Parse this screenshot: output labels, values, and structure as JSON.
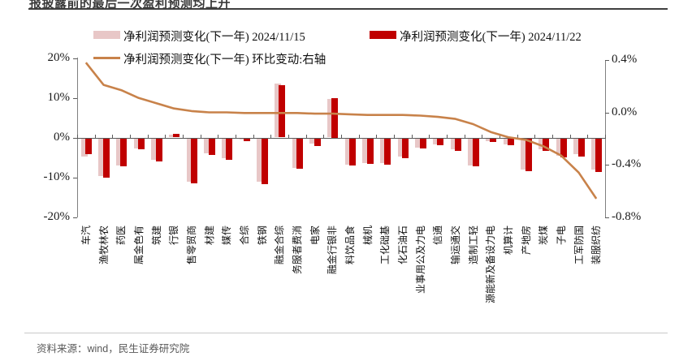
{
  "title": "报披露前的最后一次盈利预测均上升",
  "footer": "资料来源：wind，民生证券研究院",
  "colors": {
    "bar_nov15": "#e8c7c7",
    "bar_nov22": "#c00000",
    "line": "#c8824a",
    "axis": "#808080",
    "zero_line": "#595959"
  },
  "chart_data": {
    "type": "bar",
    "title": "报披露前的最后一次盈利预测均上升",
    "categories": [
      "汽车",
      "农林牧渔",
      "医药",
      "有色金属",
      "建筑",
      "银行",
      "商贸零售",
      "建材",
      "传媒",
      "综合",
      "钢铁",
      "综合金融",
      "消费者服务",
      "家电",
      "非银行金融",
      "食品饮料",
      "机械",
      "基础化工",
      "石油石化",
      "电力及公用事业",
      "通信",
      "交通运输",
      "轻工制造",
      "电力设备及新能源",
      "计算机",
      "房地产",
      "煤炭",
      "电子",
      "国防军工",
      "纺织服装"
    ],
    "series": [
      {
        "name": "净利润预测变化(下一年) 2024/11/15",
        "type": "bar",
        "axis": "left",
        "values": [
          -4.5,
          -9.5,
          -6.9,
          -2.5,
          -5.5,
          0.7,
          -11.0,
          -3.8,
          -5.1,
          -0.3,
          -10.9,
          13.6,
          -7.4,
          -1.4,
          9.6,
          -6.6,
          -6.2,
          -6.2,
          -4.5,
          -2.3,
          -1.5,
          -2.7,
          -6.8,
          -0.7,
          -1.5,
          -7.9,
          -2.8,
          -4.3,
          -4.0,
          -7.9
        ]
      },
      {
        "name": "净利润预测变化(下一年) 2024/11/22",
        "type": "bar",
        "axis": "left",
        "values": [
          -4.0,
          -9.8,
          -7.1,
          -2.8,
          -5.9,
          1.0,
          -11.3,
          -4.2,
          -5.4,
          -0.7,
          -11.5,
          13.2,
          -7.7,
          -2.0,
          10.0,
          -6.8,
          -6.5,
          -6.6,
          -4.9,
          -2.6,
          -1.8,
          -3.2,
          -7.0,
          -1.0,
          -1.8,
          -8.3,
          -3.2,
          -4.7,
          -4.5,
          -8.4
        ]
      },
      {
        "name": "净利润预测变化(下一年) 环比变动:右轴",
        "type": "line",
        "axis": "right",
        "values": [
          0.38,
          0.21,
          0.17,
          0.11,
          0.07,
          0.03,
          0.01,
          0.0,
          0.0,
          -0.005,
          -0.005,
          -0.005,
          -0.005,
          -0.01,
          -0.01,
          -0.015,
          -0.02,
          -0.02,
          -0.02,
          -0.025,
          -0.035,
          -0.05,
          -0.09,
          -0.15,
          -0.19,
          -0.21,
          -0.26,
          -0.33,
          -0.46,
          -0.66
        ]
      }
    ],
    "left_axis": {
      "ticks": [
        "20%",
        "10%",
        "0%",
        "-10%",
        "-20%"
      ],
      "max": 20,
      "min": -20,
      "unit": "%"
    },
    "right_axis": {
      "ticks": [
        "0.4%",
        "0.0%",
        "-0.4%",
        "-0.8%"
      ],
      "max": 0.4,
      "min": -0.8,
      "unit": "%"
    },
    "legend_position": "top",
    "grid": false
  }
}
